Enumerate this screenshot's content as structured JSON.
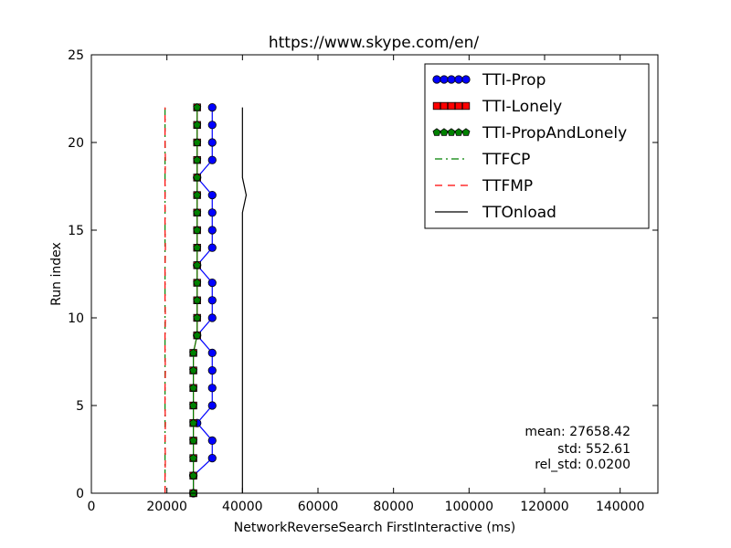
{
  "chart_data": {
    "type": "line",
    "title": "https://www.skype.com/en/",
    "xlabel": "NetworkReverseSearch FirstInteractive (ms)",
    "ylabel": "Run index",
    "xlim": [
      0,
      150000
    ],
    "ylim": [
      0,
      25
    ],
    "xticks": [
      0,
      20000,
      40000,
      60000,
      80000,
      100000,
      120000,
      140000
    ],
    "yticks": [
      0,
      5,
      10,
      15,
      20,
      25
    ],
    "grid": false,
    "legend_position": "top-right",
    "y": [
      0,
      1,
      2,
      3,
      4,
      5,
      6,
      7,
      8,
      9,
      10,
      11,
      12,
      13,
      14,
      15,
      16,
      17,
      18,
      19,
      20,
      21,
      22
    ],
    "series": [
      {
        "name": "TTI-Prop",
        "color": "#0000ff",
        "marker": "circle",
        "line": "solid",
        "x": [
          27000,
          27000,
          32000,
          32000,
          28000,
          32000,
          32000,
          32000,
          32000,
          28000,
          32000,
          32000,
          32000,
          28000,
          32000,
          32000,
          32000,
          32000,
          28000,
          32000,
          32000,
          32000,
          32000
        ]
      },
      {
        "name": "TTI-Lonely",
        "color": "#ff0000",
        "marker": "square",
        "line": "solid",
        "x": [
          27000,
          27000,
          27000,
          27000,
          27000,
          27000,
          27000,
          27000,
          27000,
          28000,
          28000,
          28000,
          28000,
          28000,
          28000,
          28000,
          28000,
          28000,
          28000,
          28000,
          28000,
          28000,
          28000
        ]
      },
      {
        "name": "TTI-PropAndLonely",
        "color": "#008000",
        "marker": "pentagon",
        "line": "solid",
        "x": [
          27000,
          27000,
          27000,
          27000,
          27000,
          27000,
          27000,
          27000,
          27000,
          28000,
          28000,
          28000,
          28000,
          28000,
          28000,
          28000,
          28000,
          28000,
          28000,
          28000,
          28000,
          28000,
          28000
        ]
      },
      {
        "name": "TTFCP",
        "color": "#008000",
        "marker": "none",
        "line": "dashdot",
        "x": [
          19500,
          19500,
          19500,
          19500,
          19500,
          19500,
          19500,
          19500,
          19500,
          19500,
          19500,
          19500,
          19500,
          19500,
          19500,
          19500,
          19500,
          19500,
          19500,
          19500,
          19500,
          19500,
          19500
        ]
      },
      {
        "name": "TTFMP",
        "color": "#ff0000",
        "marker": "none",
        "line": "dashed",
        "x": [
          19500,
          19500,
          19600,
          19500,
          19600,
          19500,
          19500,
          19600,
          19500,
          19500,
          19600,
          19500,
          19500,
          19500,
          19600,
          19500,
          19500,
          19500,
          19500,
          19600,
          19500,
          19500,
          19500
        ]
      },
      {
        "name": "TTOnload",
        "color": "#000000",
        "marker": "none",
        "line": "solid",
        "x": [
          40000,
          40000,
          40000,
          40000,
          40000,
          40000,
          40000,
          40000,
          40000,
          40000,
          40000,
          40000,
          40000,
          40000,
          40000,
          40000,
          40000,
          41000,
          40000,
          40000,
          40000,
          40000,
          40000
        ]
      }
    ],
    "stats": {
      "mean": "mean: 27658.42",
      "std": "std: 552.61",
      "rel_std": "rel_std: 0.0200"
    }
  }
}
